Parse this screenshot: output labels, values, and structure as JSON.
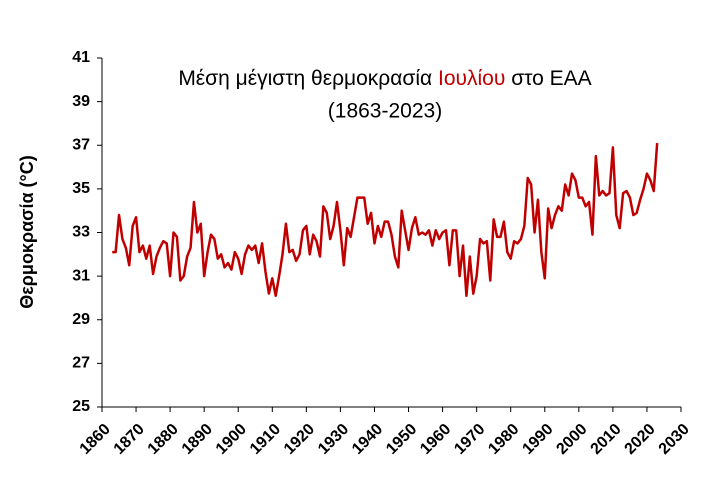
{
  "chart_data": {
    "type": "line",
    "title_parts": [
      "Μέση μέγιστη θερμοκρασία",
      "Ιουλίου",
      "στο ΕΑΑ"
    ],
    "title_colors": [
      "#000000",
      "#c00000",
      "#000000"
    ],
    "subtitle": "(1863-2023)",
    "y_label": "Θερμοκρασία (°C)",
    "x": [
      1863,
      1864,
      1865,
      1866,
      1867,
      1868,
      1869,
      1870,
      1871,
      1872,
      1873,
      1874,
      1875,
      1876,
      1877,
      1878,
      1879,
      1880,
      1881,
      1882,
      1883,
      1884,
      1885,
      1886,
      1887,
      1888,
      1889,
      1890,
      1891,
      1892,
      1893,
      1894,
      1895,
      1896,
      1897,
      1898,
      1899,
      1900,
      1901,
      1902,
      1903,
      1904,
      1905,
      1906,
      1907,
      1908,
      1909,
      1910,
      1911,
      1912,
      1913,
      1914,
      1915,
      1916,
      1917,
      1918,
      1919,
      1920,
      1921,
      1922,
      1923,
      1924,
      1925,
      1926,
      1927,
      1928,
      1929,
      1930,
      1931,
      1932,
      1933,
      1934,
      1935,
      1936,
      1937,
      1938,
      1939,
      1940,
      1941,
      1942,
      1943,
      1944,
      1945,
      1946,
      1947,
      1948,
      1949,
      1950,
      1951,
      1952,
      1953,
      1954,
      1955,
      1956,
      1957,
      1958,
      1959,
      1960,
      1961,
      1962,
      1963,
      1964,
      1965,
      1966,
      1967,
      1968,
      1969,
      1970,
      1971,
      1972,
      1973,
      1974,
      1975,
      1976,
      1977,
      1978,
      1979,
      1980,
      1981,
      1982,
      1983,
      1984,
      1985,
      1986,
      1987,
      1988,
      1989,
      1990,
      1991,
      1992,
      1993,
      1994,
      1995,
      1996,
      1997,
      1998,
      1999,
      2000,
      2001,
      2002,
      2003,
      2004,
      2005,
      2006,
      2007,
      2008,
      2009,
      2010,
      2011,
      2012,
      2013,
      2014,
      2015,
      2016,
      2017,
      2018,
      2019,
      2020,
      2021,
      2022,
      2023
    ],
    "series": [
      {
        "color": "#c00000",
        "values": [
          32.1,
          32.1,
          33.8,
          32.7,
          32.3,
          31.5,
          33.3,
          33.7,
          32.1,
          32.4,
          31.8,
          32.4,
          31.1,
          31.9,
          32.3,
          32.6,
          32.5,
          31.0,
          33.0,
          32.8,
          30.8,
          31.0,
          31.9,
          32.3,
          34.4,
          33.0,
          33.4,
          31.0,
          32.1,
          32.9,
          32.7,
          31.8,
          32.0,
          31.4,
          31.6,
          31.3,
          32.1,
          31.8,
          31.1,
          32.0,
          32.4,
          32.2,
          32.4,
          31.6,
          32.5,
          31.2,
          30.2,
          30.9,
          30.1,
          31.0,
          32.0,
          33.4,
          32.1,
          32.2,
          31.7,
          32.0,
          33.1,
          33.3,
          32.0,
          32.9,
          32.6,
          31.9,
          34.2,
          33.9,
          32.7,
          33.3,
          34.4,
          33.1,
          31.5,
          33.2,
          32.8,
          33.7,
          34.6,
          34.6,
          34.6,
          33.4,
          33.9,
          32.5,
          33.3,
          32.8,
          33.5,
          33.5,
          32.9,
          31.9,
          31.4,
          34.0,
          33.1,
          32.2,
          33.2,
          33.7,
          32.9,
          33.0,
          32.9,
          33.1,
          32.4,
          33.1,
          32.7,
          33.0,
          33.1,
          31.5,
          33.1,
          33.1,
          31.0,
          32.4,
          30.1,
          31.9,
          30.2,
          31.0,
          32.7,
          32.5,
          32.6,
          30.8,
          33.6,
          32.8,
          32.8,
          33.5,
          32.1,
          31.8,
          32.6,
          32.5,
          32.7,
          33.3,
          35.5,
          35.2,
          33.0,
          34.5,
          32.1,
          30.9,
          34.1,
          33.2,
          33.8,
          34.2,
          34.0,
          35.2,
          34.7,
          35.7,
          35.4,
          34.6,
          34.6,
          34.2,
          34.4,
          32.9,
          36.5,
          34.7,
          34.9,
          34.7,
          34.8,
          36.9,
          33.8,
          33.2,
          34.8,
          34.9,
          34.6,
          33.8,
          33.9,
          34.5,
          35.0,
          35.7,
          35.4,
          34.9,
          37.1
        ]
      }
    ],
    "xlim": [
      1860,
      2030
    ],
    "xticks": [
      1860,
      1870,
      1880,
      1890,
      1900,
      1910,
      1920,
      1930,
      1940,
      1950,
      1960,
      1970,
      1980,
      1990,
      2000,
      2010,
      2020,
      2030
    ],
    "ylim": [
      25,
      41
    ],
    "yticks": [
      25,
      27,
      29,
      31,
      33,
      35,
      37,
      39,
      41
    ],
    "grid": false
  }
}
